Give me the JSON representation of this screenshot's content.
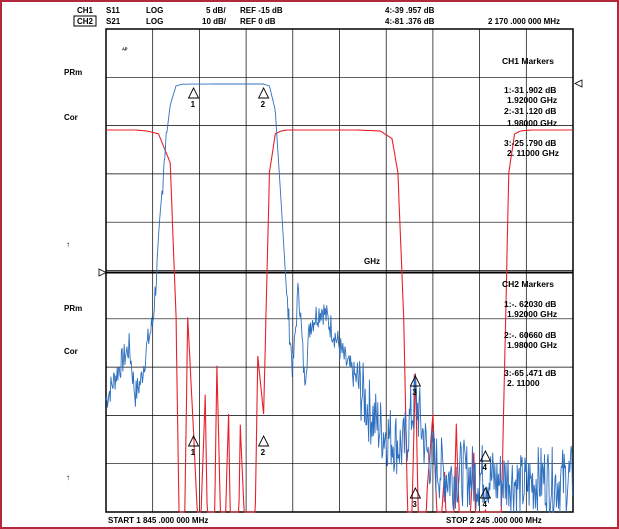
{
  "header": {
    "ch1_label": "CH1",
    "ch2_label": "CH2",
    "ch1_param": "S11",
    "ch2_param": "S21",
    "ch1_format": "LOG",
    "ch2_format": "LOG",
    "ch1_scale": "5 dB/",
    "ch2_scale": "10 dB/",
    "ch1_ref": "REF -15 dB",
    "ch2_ref": "REF 0 dB",
    "marker4_ch1": "4:-39 .957  dB",
    "marker4_ch2": "4:-81 .376  dB",
    "marker4_freq": "2 170 .000  000  MHz"
  },
  "side_labels": {
    "pa": "ᴬᴾ",
    "prm_top": "PRm",
    "cor_top": "Cor",
    "arrow_top": "↑",
    "prm_bottom": "PRm",
    "cor_bottom": "Cor",
    "arrow_bottom": "↑"
  },
  "center_label": "GHz",
  "ch1_markers": {
    "title": "CH1  Markers",
    "m1_val": "1:-31 .902  dB",
    "m1_freq": "1.92000   GHz",
    "m2_val": "2:-31 .120  dB",
    "m2_freq": "1.98000   GHz",
    "m3_val": "3:-25 .790  dB",
    "m3_freq": "2. 11000   GHz"
  },
  "ch2_markers": {
    "title": "CH2  Markers",
    "m1_val": "1:-. 62030   dB",
    "m1_freq": "1.92000   GHz",
    "m2_val": "2:-. 60660   dB",
    "m2_freq": "1.98000   GHz",
    "m3_val": "3:-65 .471  dB",
    "m3_freq": "2. 11000"
  },
  "footer": {
    "start": "START  1 845 .000  000  MHz",
    "stop": "STOP  2 245 .000  000  MHz"
  },
  "colors": {
    "s11": "#e8202a",
    "s21": "#2f6fbf",
    "grid": "#000000",
    "frame": "#b4283c"
  },
  "chart_data": {
    "type": "line",
    "x_unit": "MHz",
    "xlim": [
      1845,
      2245
    ],
    "grid": true,
    "series": [
      {
        "name": "S11",
        "x": [
          1845,
          1850,
          1860,
          1870,
          1880,
          1890,
          1900,
          1905,
          1910,
          1915,
          1920,
          1925,
          1930,
          1935,
          1940,
          1945,
          1950,
          1955,
          1960,
          1965,
          1970,
          1975,
          1980,
          1985,
          1990,
          1995,
          2000,
          2020,
          2040,
          2060,
          2080,
          2090,
          2095,
          2100,
          2105,
          2110,
          2115,
          2120,
          2125,
          2130,
          2135,
          2140,
          2145,
          2150,
          2155,
          2160,
          2165,
          2170,
          2175,
          2180,
          2185,
          2190,
          2195,
          2200,
          2210,
          2220,
          2230,
          2245
        ],
        "y_dB": [
          -0.6,
          -0.6,
          -0.6,
          -0.6,
          -0.7,
          -1.0,
          -4.0,
          -20,
          -60,
          -20,
          -31.9,
          -45,
          -28,
          -65,
          -25,
          -50,
          -30,
          -70,
          -31.1,
          -45,
          -62,
          -24,
          -30,
          -5,
          -1.0,
          -0.7,
          -0.6,
          -0.6,
          -0.6,
          -0.6,
          -0.7,
          -1.5,
          -5,
          -20,
          -50,
          -25.8,
          -55,
          -38,
          -30,
          -45,
          -36,
          -55,
          -31,
          -50,
          -45,
          -34,
          -55,
          -39.96,
          -46,
          -58,
          -33,
          -5,
          -1.0,
          -0.7,
          -0.6,
          -0.6,
          -0.6,
          -0.6
        ]
      },
      {
        "name": "S21",
        "x": [
          1845,
          1855,
          1865,
          1870,
          1875,
          1880,
          1885,
          1890,
          1895,
          1900,
          1905,
          1910,
          1920,
          1950,
          1980,
          1985,
          1990,
          1995,
          2000,
          2005,
          2010,
          2015,
          2020,
          2030,
          2040,
          2050,
          2060,
          2070,
          2080,
          2090,
          2100,
          2110,
          2120,
          2130,
          2140,
          2150,
          2160,
          2170,
          2180,
          2190,
          2200,
          2210,
          2220,
          2230,
          2245
        ],
        "y_dB": [
          -66,
          -60,
          -55,
          -65,
          -62,
          -55,
          -50,
          -35,
          -15,
          -5,
          -1,
          -0.65,
          -0.62,
          -0.6,
          -0.61,
          -1,
          -6,
          -25,
          -45,
          -60,
          -42,
          -62,
          -50,
          -47,
          -52,
          -58,
          -62,
          -68,
          -72,
          -74,
          -76,
          -65.5,
          -77,
          -80,
          -82,
          -81,
          -82,
          -81.4,
          -83,
          -82,
          -84,
          -83,
          -82,
          -83,
          -82
        ]
      }
    ]
  }
}
